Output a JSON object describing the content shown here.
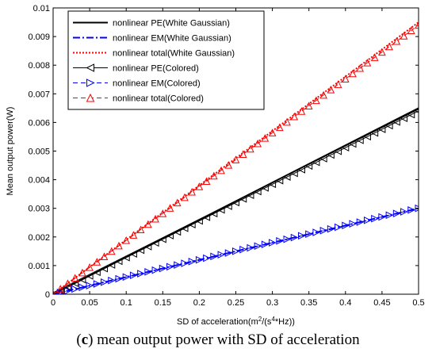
{
  "caption": {
    "label": "c",
    "text": "mean output power with SD of acceleration"
  },
  "chart_data": {
    "type": "line",
    "xlabel": "SD of acceleration(m2/(s4*Hz))",
    "ylabel": "Mean output power(W)",
    "xlim": [
      0,
      0.5
    ],
    "ylim": [
      0,
      0.01
    ],
    "xticks": [
      0,
      0.05,
      0.1,
      0.15,
      0.2,
      0.25,
      0.3,
      0.35,
      0.4,
      0.45,
      0.5
    ],
    "yticks": [
      0,
      0.001,
      0.002,
      0.003,
      0.004,
      0.005,
      0.006,
      0.007,
      0.008,
      0.009,
      0.01
    ],
    "xtick_labels": [
      "0",
      "0.05",
      "0.1",
      "0.15",
      "0.2",
      "0.25",
      "0.3",
      "0.35",
      "0.4",
      "0.45",
      "0.5"
    ],
    "ytick_labels": [
      "0",
      "0.001",
      "0.002",
      "0.003",
      "0.004",
      "0.005",
      "0.006",
      "0.007",
      "0.008",
      "0.009",
      "0.01"
    ],
    "grid": false,
    "legend_position": "top-left",
    "x": [
      0,
      0.5
    ],
    "series": [
      {
        "name": "nonlinear PE(White Gaussian)",
        "values": [
          0,
          0.0065
        ],
        "color": "#000000",
        "dash": "solid",
        "marker": "none"
      },
      {
        "name": "nonlinear EM(White Gaussian)",
        "values": [
          0,
          0.003
        ],
        "color": "#0000ff",
        "dash": "dashdot",
        "marker": "none"
      },
      {
        "name": "nonlinear total(White Gaussian)",
        "values": [
          0,
          0.0095
        ],
        "color": "#ff0000",
        "dash": "dotted",
        "marker": "none"
      },
      {
        "name": "nonlinear PE(Colored)",
        "values": [
          0,
          0.0064
        ],
        "color": "#000000",
        "dash": "solid",
        "marker": "triangle-left"
      },
      {
        "name": "nonlinear EM(Colored)",
        "values": [
          0,
          0.003
        ],
        "color": "#0000ff",
        "dash": "dashed",
        "marker": "triangle-right"
      },
      {
        "name": "nonlinear total(Colored)",
        "values": [
          0,
          0.0094
        ],
        "color": "#ff0000",
        "dash": "dashed",
        "marker": "triangle-up"
      }
    ]
  }
}
